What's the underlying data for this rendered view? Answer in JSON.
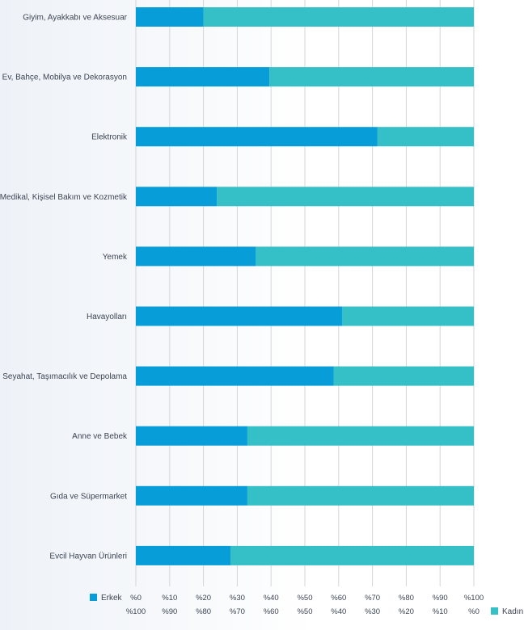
{
  "colors": {
    "erkek": "#079dd9",
    "kadin": "#35bfc6",
    "grid": "#d2d6dc"
  },
  "chart_data": {
    "type": "bar",
    "orientation": "horizontal",
    "stacked": true,
    "categories": [
      "Giyim, Ayakkabı ve Aksesuar",
      "Ev, Bahçe, Mobilya ve Dekorasyon",
      "Elektronik",
      "Medikal, Kişisel Bakım ve Kozmetik",
      "Yemek",
      "Havayolları",
      "Seyahat, Taşımacılık ve Depolama",
      "Anne ve Bebek",
      "Gıda ve Süpermarket",
      "Evcil Hayvan Ürünleri"
    ],
    "series": [
      {
        "name": "Erkek",
        "values": [
          20,
          39.5,
          71.5,
          24,
          35.5,
          61,
          58.5,
          33,
          33,
          28
        ]
      },
      {
        "name": "Kadın",
        "values": [
          80,
          60.5,
          28.5,
          76,
          64.5,
          39,
          41.5,
          67,
          67,
          72
        ]
      }
    ],
    "xlim": [
      0,
      100
    ],
    "x_ticks_top": [
      "%0",
      "%10",
      "%20",
      "%30",
      "%40",
      "%50",
      "%60",
      "%70",
      "%80",
      "%90",
      "%100"
    ],
    "x_ticks_bottom": [
      "%100",
      "%90",
      "%80",
      "%70",
      "%60",
      "%50",
      "%40",
      "%30",
      "%20",
      "%10",
      "%0"
    ],
    "grid": true,
    "legend": [
      {
        "label": "Erkek",
        "placement": "bottom-left"
      },
      {
        "label": "Kadın",
        "placement": "bottom-right"
      }
    ]
  }
}
